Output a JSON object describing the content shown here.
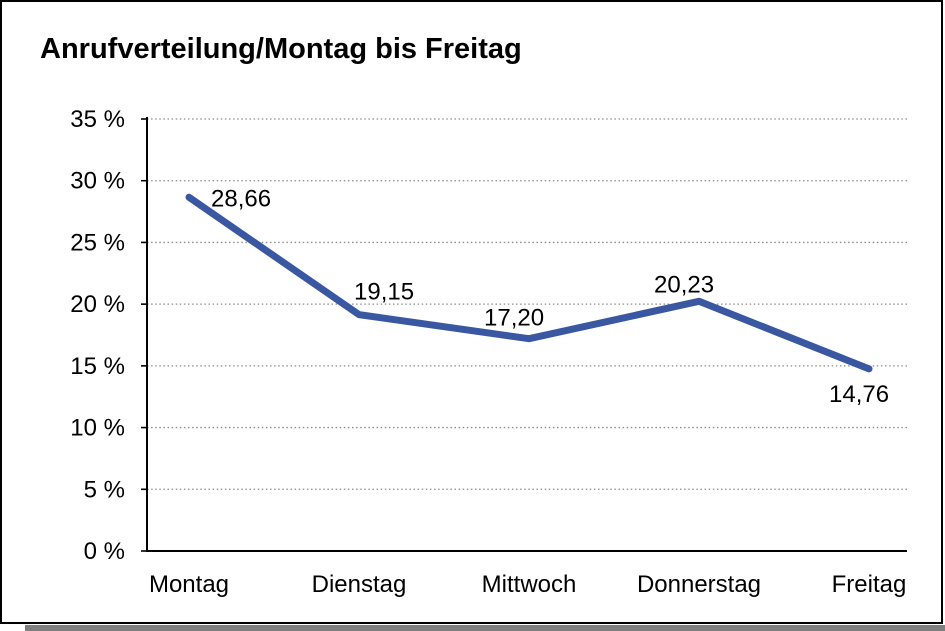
{
  "chart_data": {
    "type": "line",
    "title": "Anrufverteilung/Montag bis Freitag",
    "categories": [
      "Montag",
      "Dienstag",
      "Mittwoch",
      "Donnerstag",
      "Freitag"
    ],
    "series": [
      {
        "name": "Anrufverteilung",
        "values": [
          28.66,
          19.15,
          17.2,
          20.23,
          14.76
        ],
        "data_labels": [
          "28,66",
          "19,15",
          "17,20",
          "20,23",
          "14,76"
        ],
        "color": "#3A57A2"
      }
    ],
    "xlabel": "",
    "ylabel": "",
    "ylim": [
      0,
      35
    ],
    "y_ticks": [
      0,
      5,
      10,
      15,
      20,
      25,
      30,
      35
    ],
    "y_tick_labels": [
      "0 %",
      "5 %",
      "10 %",
      "15 %",
      "20 %",
      "25 %",
      "30 %",
      "35 %"
    ],
    "grid": "horizontal-dotted",
    "gridline_color": "#8c8c8c",
    "axis_color": "#000000",
    "legend_position": "none"
  },
  "frame": {
    "border_color": "#000000",
    "shadow_color": "#7f7f7f",
    "background": "#ffffff"
  }
}
